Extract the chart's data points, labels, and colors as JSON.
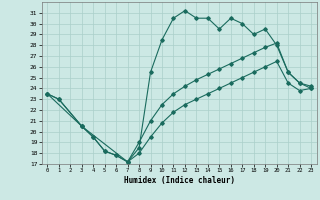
{
  "title": "",
  "xlabel": "Humidex (Indice chaleur)",
  "ylabel": "",
  "bg_color": "#cce8e4",
  "line_color": "#1a6b5e",
  "grid_color": "#aacfca",
  "ylim": [
    17,
    32
  ],
  "xlim": [
    -0.5,
    23.5
  ],
  "yticks": [
    17,
    18,
    19,
    20,
    21,
    22,
    23,
    24,
    25,
    26,
    27,
    28,
    29,
    30,
    31
  ],
  "xticks": [
    0,
    1,
    2,
    3,
    4,
    5,
    6,
    7,
    8,
    9,
    10,
    11,
    12,
    13,
    14,
    15,
    16,
    17,
    18,
    19,
    20,
    21,
    22,
    23
  ],
  "curve1_x": [
    0,
    1,
    3,
    4,
    5,
    6,
    7,
    8,
    9,
    10,
    11,
    12,
    13,
    14,
    15,
    16,
    17,
    18,
    19,
    20,
    21,
    22,
    23
  ],
  "curve1_y": [
    23.5,
    23.0,
    20.5,
    19.5,
    18.2,
    17.8,
    17.2,
    18.5,
    25.5,
    28.5,
    30.5,
    31.2,
    30.5,
    30.5,
    29.5,
    30.5,
    30.0,
    29.0,
    29.5,
    28.0,
    25.5,
    24.5,
    24.0
  ],
  "curve2_x": [
    0,
    3,
    7,
    8,
    9,
    10,
    11,
    12,
    13,
    14,
    15,
    16,
    17,
    18,
    19,
    20,
    21,
    22,
    23
  ],
  "curve2_y": [
    23.5,
    20.5,
    17.2,
    19.0,
    21.0,
    22.5,
    23.5,
    24.2,
    24.8,
    25.3,
    25.8,
    26.3,
    26.8,
    27.3,
    27.8,
    28.2,
    25.5,
    24.5,
    24.2
  ],
  "curve3_x": [
    0,
    1,
    3,
    4,
    5,
    6,
    7,
    8,
    9,
    10,
    11,
    12,
    13,
    14,
    15,
    16,
    17,
    18,
    19,
    20,
    21,
    22,
    23
  ],
  "curve3_y": [
    23.5,
    23.0,
    20.5,
    19.5,
    18.2,
    17.8,
    17.2,
    18.0,
    19.5,
    20.8,
    21.8,
    22.5,
    23.0,
    23.5,
    24.0,
    24.5,
    25.0,
    25.5,
    26.0,
    26.5,
    24.5,
    23.8,
    24.0
  ]
}
